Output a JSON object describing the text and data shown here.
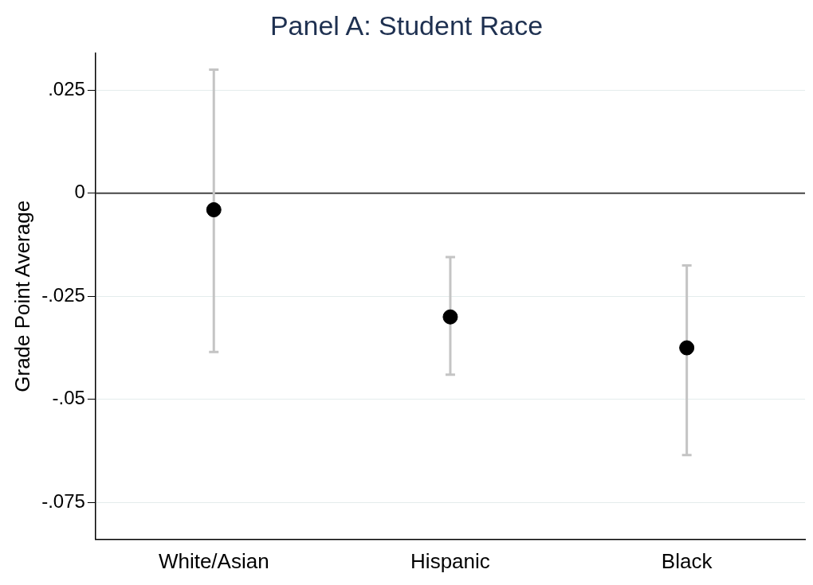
{
  "chart_data": {
    "type": "scatter",
    "title": "Panel A: Student Race",
    "ylabel": "Grade Point Average",
    "categories": [
      "White/Asian",
      "Hispanic",
      "Black"
    ],
    "series": [
      {
        "color": "#000000",
        "values": [
          -0.004,
          -0.03,
          -0.0375
        ],
        "errors": [
          [
            -0.0385,
            0.03
          ],
          [
            -0.044,
            -0.0155
          ],
          [
            -0.0635,
            -0.0175
          ]
        ]
      }
    ],
    "ylim": [
      -0.084,
      0.034
    ],
    "yticks": [
      {
        "value": 0.025,
        "label": ".025"
      },
      {
        "value": 0,
        "label": "0"
      },
      {
        "value": -0.025,
        "label": "-.025"
      },
      {
        "value": -0.05,
        "label": "-.05"
      },
      {
        "value": -0.075,
        "label": "-.075"
      }
    ],
    "ref_lines": [
      {
        "axis": "y",
        "value": 0,
        "color": "#444444"
      }
    ],
    "grid": "y",
    "marker": "circle",
    "legend": false
  }
}
